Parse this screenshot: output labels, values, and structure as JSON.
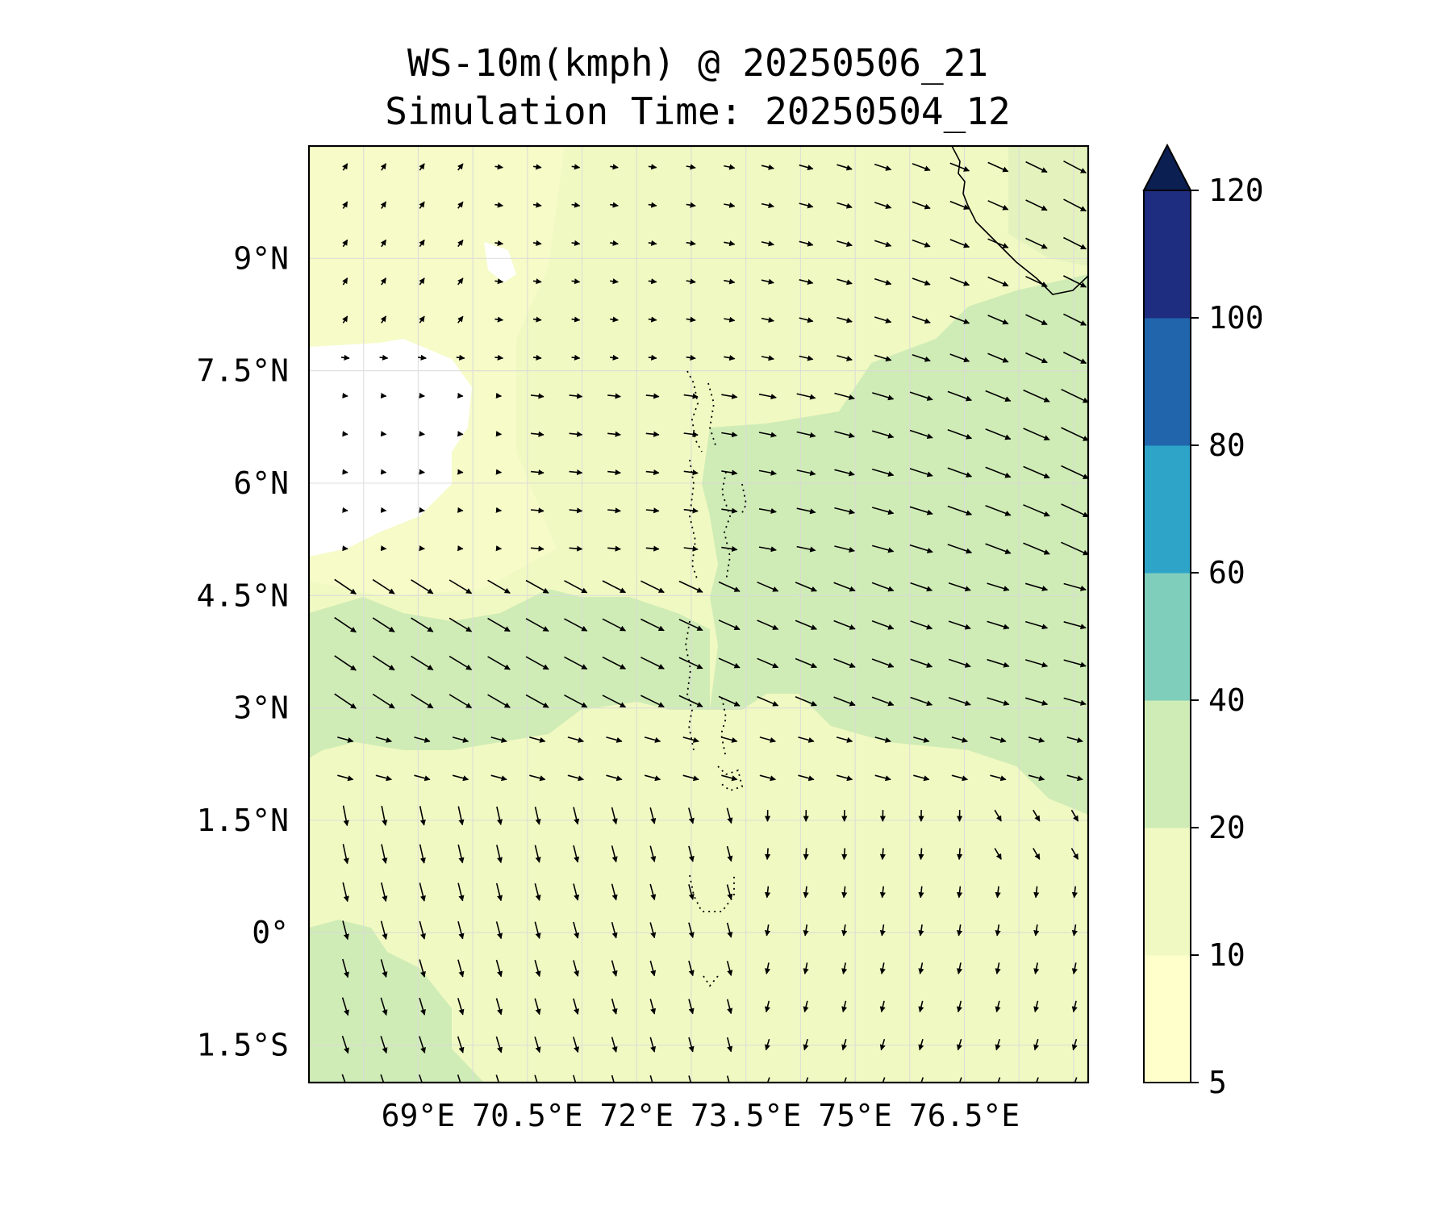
{
  "title": "WS-10m(kmph) @ 20250506_21",
  "subtitle": "Simulation Time: 20250504_12",
  "map": {
    "lon_range": [
      67.5,
      78.2
    ],
    "lat_range": [
      -2.0,
      10.5
    ],
    "lon_ticks": [
      {
        "value": 69,
        "label": "69°E"
      },
      {
        "value": 70.5,
        "label": "70.5°E"
      },
      {
        "value": 72,
        "label": "72°E"
      },
      {
        "value": 73.5,
        "label": "73.5°E"
      },
      {
        "value": 75,
        "label": "75°E"
      },
      {
        "value": 76.5,
        "label": "76.5°E"
      }
    ],
    "lat_ticks": [
      {
        "value": 9,
        "label": "9°N"
      },
      {
        "value": 7.5,
        "label": "7.5°N"
      },
      {
        "value": 6,
        "label": "6°N"
      },
      {
        "value": 4.5,
        "label": "4.5°N"
      },
      {
        "value": 3,
        "label": "3°N"
      },
      {
        "value": 1.5,
        "label": "1.5°N"
      },
      {
        "value": 0,
        "label": "0°"
      },
      {
        "value": -1.5,
        "label": "1.5°S"
      }
    ],
    "gridlines": true,
    "features": [
      "India/Sri Lanka coastline (top-right)",
      "Maldives atolls (dotted)",
      "wind vectors (quiver)"
    ]
  },
  "colorbar": {
    "levels": [
      5,
      10,
      20,
      40,
      60,
      80,
      100,
      120
    ],
    "tick_labels": [
      "5",
      "10",
      "20",
      "40",
      "60",
      "80",
      "100",
      "120"
    ],
    "colors": [
      "#ffffcc",
      "#f1f9c2",
      "#d0ecb6",
      "#7fcdbb",
      "#2ea5c8",
      "#2166ac",
      "#1e2d80"
    ],
    "extend_color": "#0b1f52",
    "extend": "max"
  },
  "colors": {
    "white_area": "#ffffff",
    "level_5_10": "#ffffcc",
    "level_10_20": "#f1f9c2",
    "level_20_40": "#d0ecb6"
  }
}
